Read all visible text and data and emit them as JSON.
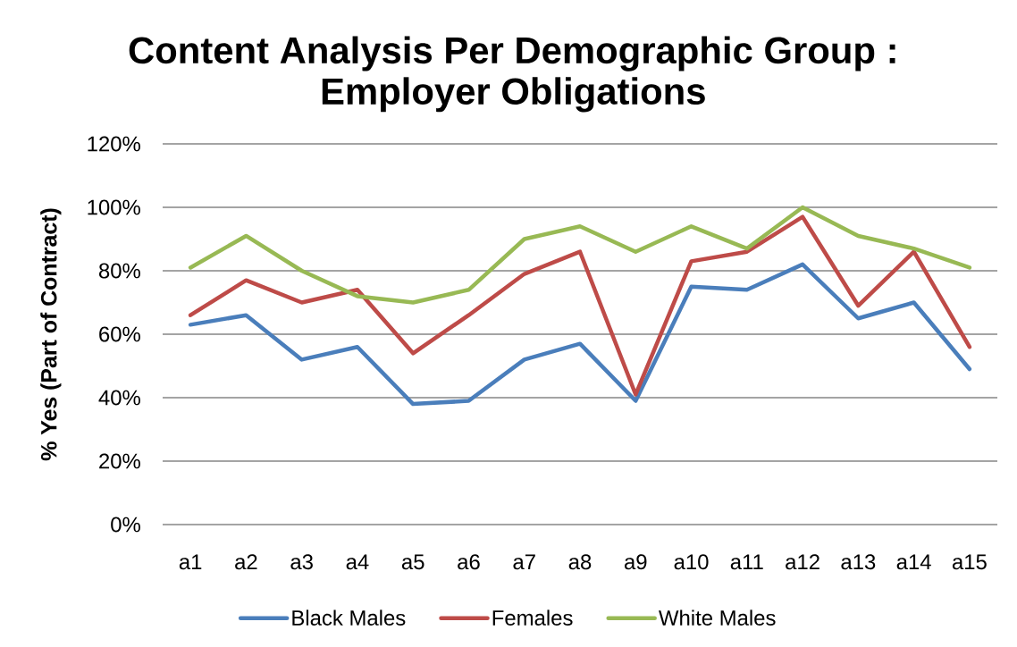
{
  "chart_data": {
    "type": "line",
    "title": "Content Analysis Per Demographic Group : Employer Obligations",
    "ylabel": "% Yes (Part of Contract)",
    "categories": [
      "a1",
      "a2",
      "a3",
      "a4",
      "a5",
      "a6",
      "a7",
      "a8",
      "a9",
      "a10",
      "a11",
      "a12",
      "a13",
      "a14",
      "a15"
    ],
    "series": [
      {
        "name": "Black Males",
        "color": "#4a7ebb",
        "values": [
          63,
          66,
          52,
          56,
          38,
          39,
          52,
          57,
          39,
          75,
          74,
          82,
          65,
          70,
          49
        ]
      },
      {
        "name": "Females",
        "color": "#be4b48",
        "values": [
          66,
          77,
          70,
          74,
          54,
          66,
          79,
          86,
          41,
          83,
          86,
          97,
          69,
          86,
          56
        ]
      },
      {
        "name": "White Males",
        "color": "#98b954",
        "values": [
          81,
          91,
          80,
          72,
          70,
          74,
          90,
          94,
          86,
          94,
          87,
          100,
          91,
          87,
          81
        ]
      }
    ],
    "ylim": [
      0,
      120
    ],
    "yticks": [
      {
        "value": 0,
        "label": "0%"
      },
      {
        "value": 20,
        "label": "20%"
      },
      {
        "value": 40,
        "label": "40%"
      },
      {
        "value": 60,
        "label": "60%"
      },
      {
        "value": 80,
        "label": "80%"
      },
      {
        "value": 100,
        "label": "100%"
      },
      {
        "value": 120,
        "label": "120%"
      }
    ],
    "grid": "y",
    "legend": "bottom",
    "line_style": "solid"
  }
}
